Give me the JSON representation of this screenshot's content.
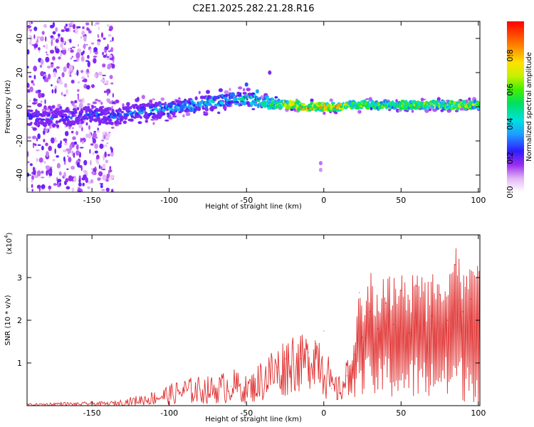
{
  "title": "C2E1.2025.282.21.28.R16",
  "chart_data": [
    {
      "type": "heatmap",
      "name": "spectrogram",
      "xlabel": "Height of straight line (km)",
      "ylabel": "Frequency (Hz)",
      "xlim": [
        -192,
        101
      ],
      "ylim": [
        -50,
        50
      ],
      "xticks": [
        -150,
        -100,
        -50,
        0,
        50,
        100
      ],
      "yticks": [
        -40,
        -20,
        0,
        20,
        40
      ],
      "xtick_labels": [
        "-150",
        "-100",
        "-50",
        "0",
        "50",
        "100"
      ],
      "ytick_labels": [
        "-40",
        "-20",
        "0",
        "20",
        "40"
      ],
      "colorbar": {
        "label": "Normalized spectral amplitude",
        "range": [
          0,
          1
        ],
        "ticks": [
          0.0,
          0.2,
          0.4,
          0.6,
          0.8
        ],
        "tick_labels": [
          "0.0",
          "0.2",
          "0.4",
          "0.6",
          "0.8"
        ]
      },
      "ridge": {
        "x": [
          -192,
          -170,
          -150,
          -135,
          -120,
          -100,
          -80,
          -60,
          -50,
          -40,
          -30,
          -20,
          -10,
          0,
          10,
          20,
          40,
          60,
          80,
          101
        ],
        "freq": [
          -6,
          -7,
          -4,
          -6,
          -3,
          -1,
          2,
          4,
          5,
          3,
          2,
          1,
          0,
          0,
          0,
          1,
          1,
          1,
          1,
          1
        ],
        "amplitude": [
          0.3,
          0.35,
          0.35,
          0.35,
          0.4,
          0.45,
          0.5,
          0.5,
          0.55,
          0.55,
          0.7,
          0.8,
          0.95,
          0.85,
          0.9,
          0.7,
          0.65,
          0.65,
          0.75,
          0.7
        ]
      }
    },
    {
      "type": "line",
      "name": "snr",
      "xlabel": "Height of straight line (km)",
      "ylabel": "SNR (10 * v/v)",
      "yscale_label": "(x10",
      "yscale_exp": "4",
      "xlim": [
        -192,
        101
      ],
      "ylim": [
        0,
        40000
      ],
      "xticks": [
        -150,
        -100,
        -50,
        0,
        50,
        100
      ],
      "yticks": [
        10000,
        20000,
        30000
      ],
      "xtick_labels": [
        "-150",
        "-100",
        "-50",
        "0",
        "50",
        "100"
      ],
      "ytick_labels": [
        "1",
        "2",
        "3"
      ],
      "color": "#e03030",
      "x": [
        -192,
        -180,
        -170,
        -160,
        -150,
        -140,
        -130,
        -120,
        -110,
        -100,
        -90,
        -80,
        -70,
        -60,
        -50,
        -45,
        -40,
        -35,
        -30,
        -25,
        -20,
        -15,
        -10,
        -5,
        0,
        5,
        10,
        15,
        20,
        23,
        25,
        30,
        35,
        40,
        45,
        50,
        55,
        60,
        65,
        70,
        75,
        80,
        85,
        90,
        95,
        101
      ],
      "y": [
        200,
        300,
        500,
        300,
        500,
        400,
        700,
        1000,
        1800,
        2500,
        3500,
        3800,
        4000,
        4500,
        3000,
        3800,
        6000,
        8000,
        9000,
        11000,
        13500,
        11000,
        12500,
        14500,
        17500,
        4000,
        3000,
        7000,
        12000,
        26500,
        16000,
        22000,
        18000,
        24000,
        19000,
        27000,
        17000,
        28000,
        19000,
        21000,
        26000,
        20000,
        33000,
        22000,
        25000,
        32000
      ],
      "envelope": [
        500,
        600,
        900,
        700,
        1000,
        900,
        1500,
        2500,
        3500,
        5000,
        6500,
        7000,
        7000,
        9000,
        7000,
        8500,
        11500,
        13500,
        14500,
        16500,
        18500,
        16500,
        17500,
        19500,
        19000,
        7500,
        7000,
        11000,
        16500,
        26800,
        25000,
        32000,
        28000,
        33500,
        30000,
        31500,
        28000,
        34000,
        30000,
        32000,
        35000,
        31000,
        39000,
        31000,
        33000,
        33500
      ],
      "floor": [
        0,
        0,
        0,
        0,
        0,
        0,
        0,
        0,
        100,
        200,
        300,
        300,
        400,
        500,
        500,
        600,
        800,
        1000,
        1500,
        2000,
        3000,
        3000,
        3500,
        5000,
        1500,
        500,
        500,
        1000,
        2000,
        5000,
        1500,
        1800,
        1400,
        1500,
        1300,
        1200,
        1100,
        1100,
        1000,
        1000,
        900,
        900,
        800,
        800,
        700,
        700
      ]
    }
  ]
}
